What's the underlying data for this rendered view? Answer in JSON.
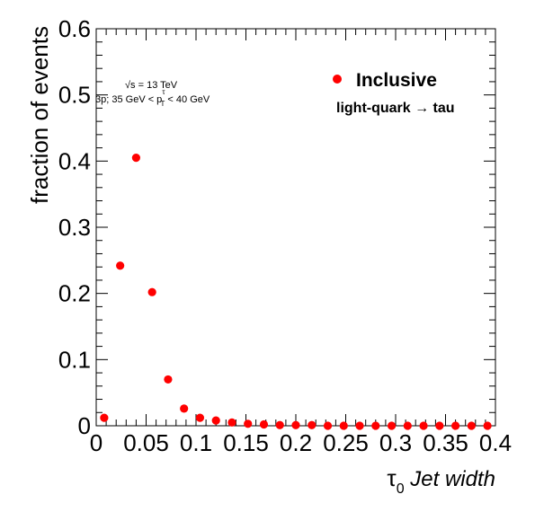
{
  "chart_data": {
    "type": "scatter",
    "xlabel_symbol": "τ",
    "xlabel_subscript": "0",
    "xlabel_text": "Jet width",
    "ylabel": "fraction of events",
    "xlim": [
      0,
      0.4
    ],
    "ylim": [
      0,
      0.6
    ],
    "x_ticks": [
      "0",
      "0.05",
      "0.1",
      "0.15",
      "0.2",
      "0.25",
      "0.3",
      "0.35",
      "0.4"
    ],
    "y_ticks": [
      "0",
      "0.1",
      "0.2",
      "0.3",
      "0.4",
      "0.5",
      "0.6"
    ],
    "grid": false,
    "legend_position": "top-right",
    "annotations": {
      "energy_sqrt": "√s",
      "energy_value": " = 13 TeV",
      "selection_prefix": "3p; 35 GeV < p",
      "selection_sub": "T",
      "selection_sup": "τ",
      "selection_suffix": " < 40 GeV"
    },
    "legend_label": "Inclusive",
    "legend_sublabel": "light-quark → tau",
    "marker_color": "#ff0000",
    "series": [
      {
        "name": "Inclusive",
        "x": [
          0.008,
          0.024,
          0.04,
          0.056,
          0.072,
          0.088,
          0.104,
          0.12,
          0.136,
          0.152,
          0.168,
          0.184,
          0.2,
          0.216,
          0.232,
          0.248,
          0.264,
          0.28,
          0.296,
          0.312,
          0.328,
          0.344,
          0.36,
          0.376,
          0.392
        ],
        "y": [
          0.012,
          0.242,
          0.405,
          0.202,
          0.07,
          0.026,
          0.012,
          0.008,
          0.005,
          0.003,
          0.002,
          0.001,
          0.001,
          0.001,
          0.0,
          0.0,
          0.0,
          0.0,
          0.0,
          0.0,
          0.0,
          0.0,
          0.0,
          0.0,
          0.0
        ]
      }
    ]
  }
}
